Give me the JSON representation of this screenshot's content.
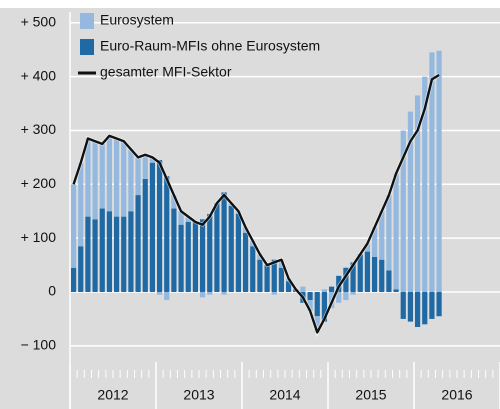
{
  "chart_data": {
    "type": "stacked-bar-line",
    "years": [
      "2012",
      "2013",
      "2014",
      "2015",
      "2016"
    ],
    "series": [
      {
        "name": "Euro-Raum-MFIs ohne Eurosystem",
        "color": "#1f6aa5",
        "kind": "bar",
        "values": [
          45,
          85,
          140,
          135,
          155,
          150,
          140,
          140,
          150,
          180,
          210,
          240,
          245,
          215,
          155,
          125,
          130,
          130,
          135,
          145,
          165,
          185,
          160,
          145,
          110,
          85,
          60,
          50,
          60,
          45,
          20,
          5,
          -20,
          -15,
          -45,
          -55,
          10,
          30,
          45,
          55,
          70,
          75,
          65,
          60,
          40,
          5,
          -50,
          -55,
          -65,
          -60,
          -50,
          -45
        ]
      },
      {
        "name": "Eurosystem",
        "color": "#94b8de",
        "kind": "bar",
        "values": [
          155,
          155,
          145,
          145,
          120,
          140,
          145,
          140,
          115,
          70,
          45,
          10,
          -5,
          -15,
          25,
          25,
          10,
          0,
          -10,
          -5,
          0,
          -5,
          5,
          5,
          10,
          10,
          10,
          0,
          -5,
          15,
          5,
          0,
          10,
          -20,
          -30,
          5,
          -30,
          -20,
          -15,
          -5,
          0,
          15,
          55,
          90,
          140,
          215,
          300,
          335,
          365,
          400,
          445,
          448
        ]
      },
      {
        "name": "gesamter MFI-Sektor",
        "color": "#111111",
        "kind": "line",
        "values": [
          200,
          240,
          285,
          280,
          275,
          290,
          285,
          280,
          265,
          250,
          255,
          250,
          240,
          210,
          180,
          150,
          140,
          130,
          125,
          140,
          165,
          180,
          165,
          150,
          120,
          95,
          70,
          50,
          55,
          60,
          25,
          5,
          -10,
          -35,
          -75,
          -50,
          -20,
          10,
          30,
          50,
          70,
          90,
          120,
          150,
          180,
          220,
          250,
          280,
          300,
          340,
          395,
          403
        ]
      }
    ],
    "legend_order": [
      1,
      0,
      2
    ],
    "ylim": [
      -130,
      520
    ],
    "yticks": [
      {
        "value": -100,
        "label": "− 100"
      },
      0,
      {
        "value": 100,
        "label": "+ 100"
      },
      {
        "value": 200,
        "label": "+ 200"
      },
      {
        "value": 300,
        "label": "+ 300"
      },
      {
        "value": 400,
        "label": "+ 400"
      },
      {
        "value": 500,
        "label": "+ 500"
      }
    ],
    "grid": true
  }
}
